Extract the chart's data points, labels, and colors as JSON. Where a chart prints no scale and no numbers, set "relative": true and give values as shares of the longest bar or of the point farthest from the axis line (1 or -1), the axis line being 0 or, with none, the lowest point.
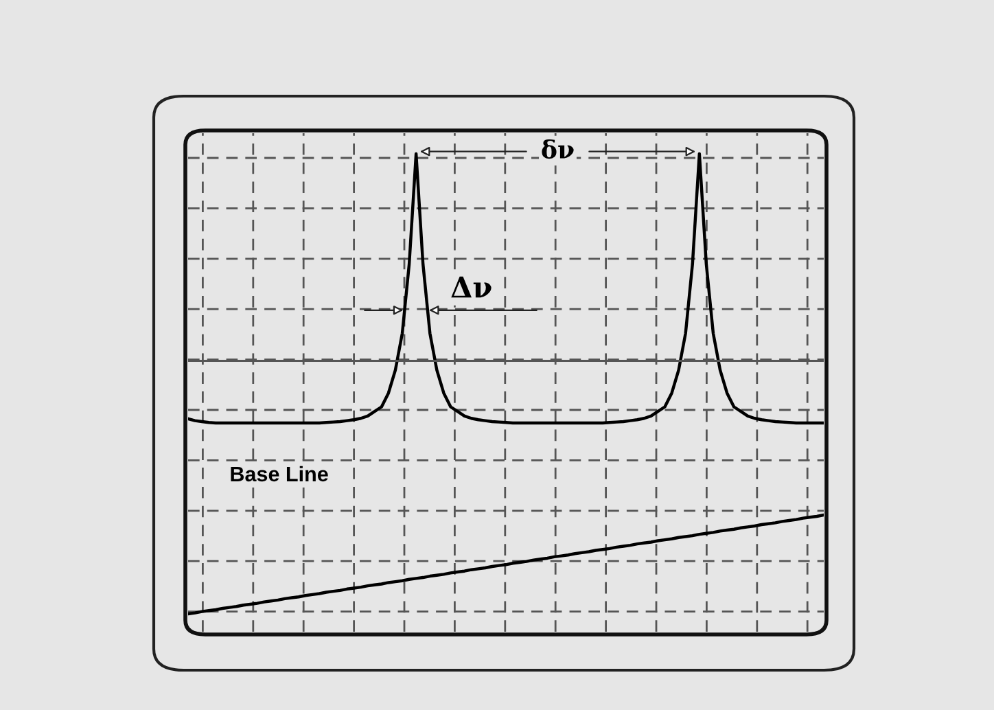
{
  "chart_data": {
    "type": "line",
    "relative": true,
    "grid": true,
    "legend": false,
    "line_style": "solid",
    "marker": "none",
    "categories": [
      null,
      null,
      null,
      null,
      null,
      null,
      null,
      null,
      null,
      null,
      null,
      null,
      null,
      null,
      null,
      null,
      null,
      null,
      null,
      null,
      null,
      null,
      null,
      null,
      null,
      null,
      null,
      null,
      null,
      null,
      null,
      null,
      null,
      null,
      null,
      null,
      null,
      null,
      null,
      null,
      null,
      null,
      null,
      null,
      null,
      null,
      null,
      null,
      null,
      null,
      null,
      null,
      null,
      null,
      null,
      null,
      null,
      null,
      null,
      null,
      null,
      null,
      null,
      null,
      null,
      null,
      null,
      null,
      null,
      null,
      null,
      null,
      null,
      null,
      null,
      null,
      null,
      null,
      null,
      null,
      null,
      null,
      null,
      null,
      null,
      null,
      null,
      null,
      null,
      null,
      null,
      null,
      null
    ],
    "series": [
      {
        "color": "#000000",
        "values": [
          0.424,
          0.42,
          0.418,
          0.416,
          0.415,
          0.415,
          0.415,
          0.415,
          0.415,
          0.415,
          0.415,
          0.415,
          0.415,
          0.415,
          0.415,
          0.415,
          0.415,
          0.415,
          0.415,
          0.415,
          0.416,
          0.417,
          0.418,
          0.42,
          0.422,
          0.425,
          0.43,
          0.44,
          0.45,
          0.48,
          0.53,
          0.61,
          0.76,
          1.0,
          0.76,
          0.61,
          0.53,
          0.48,
          0.45,
          0.44,
          0.43,
          0.425,
          0.422,
          0.42,
          0.418,
          0.417,
          0.416,
          0.415,
          0.415,
          0.415,
          0.415,
          0.415,
          0.415,
          0.415,
          0.415,
          0.415,
          0.415,
          0.415,
          0.415,
          0.415,
          0.415,
          0.416,
          0.417,
          0.418,
          0.42,
          0.422,
          0.425,
          0.43,
          0.44,
          0.45,
          0.48,
          0.53,
          0.61,
          0.76,
          1.0,
          0.76,
          0.61,
          0.53,
          0.48,
          0.45,
          0.44,
          0.43,
          0.425,
          0.422,
          0.42,
          0.418,
          0.417,
          0.416,
          0.415,
          0.415,
          0.415,
          0.415,
          0.415
        ]
      },
      {
        "color": "#000000",
        "values": [
          0.0,
          0.002,
          0.005,
          0.007,
          0.009,
          0.012,
          0.014,
          0.016,
          0.019,
          0.021,
          0.023,
          0.026,
          0.028,
          0.03,
          0.033,
          0.035,
          0.037,
          0.04,
          0.042,
          0.044,
          0.047,
          0.049,
          0.051,
          0.054,
          0.056,
          0.058,
          0.061,
          0.063,
          0.065,
          0.068,
          0.07,
          0.072,
          0.075,
          0.077,
          0.079,
          0.082,
          0.084,
          0.086,
          0.089,
          0.091,
          0.093,
          0.096,
          0.098,
          0.1,
          0.103,
          0.105,
          0.107,
          0.11,
          0.112,
          0.114,
          0.117,
          0.119,
          0.121,
          0.124,
          0.126,
          0.128,
          0.131,
          0.133,
          0.135,
          0.138,
          0.14,
          0.142,
          0.145,
          0.147,
          0.149,
          0.152,
          0.154,
          0.156,
          0.159,
          0.161,
          0.163,
          0.166,
          0.168,
          0.17,
          0.173,
          0.175,
          0.177,
          0.18,
          0.182,
          0.184,
          0.187,
          0.189,
          0.191,
          0.194,
          0.196,
          0.198,
          0.201,
          0.203,
          0.205,
          0.208,
          0.21,
          0.212,
          0.215
        ]
      }
    ],
    "ref_lines": [
      {
        "axis": "y",
        "value": 0.55,
        "color": "#555555",
        "line_style": "solid"
      }
    ],
    "annotations": [
      "δν",
      "Δν",
      "Base Line"
    ]
  }
}
